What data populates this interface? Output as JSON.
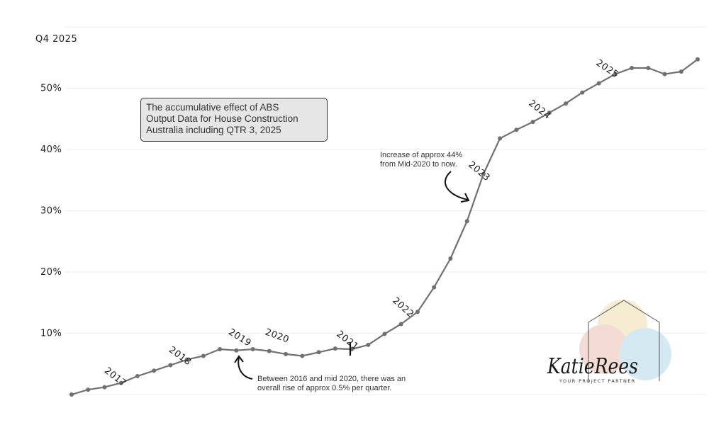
{
  "chart_data": {
    "type": "line",
    "title_lines": [
      "The accumulative effect of ABS",
      "Output Data for House Construction",
      "Australia including QTR 3, 2025"
    ],
    "top_label": "Q4 2025",
    "y_tick_labels": [
      "10%",
      "20%",
      "30%",
      "40%",
      "50%"
    ],
    "y_ticks": [
      10,
      20,
      30,
      40,
      50
    ],
    "ylim": [
      0,
      60
    ],
    "grid": "horizontal",
    "line_color": "#707070",
    "marker_color": "#707070",
    "year_labels": [
      {
        "text": "2017",
        "index": 2
      },
      {
        "text": "2018",
        "index": 6
      },
      {
        "text": "2019",
        "index": 10
      },
      {
        "text": "2020",
        "index": 13
      },
      {
        "text": "2021",
        "index": 17
      },
      {
        "text": "2022",
        "index": 21
      },
      {
        "text": "2023",
        "index": 25
      },
      {
        "text": "2024",
        "index": 29
      },
      {
        "text": "2025",
        "index": 33
      }
    ],
    "mid2020_marker_index": 17,
    "series": [
      {
        "values": [
          0,
          0.8,
          1.2,
          1.9,
          3.0,
          3.9,
          4.8,
          5.7,
          6.3,
          7.4,
          7.2,
          7.4,
          7.1,
          6.6,
          6.3,
          6.9,
          7.5,
          7.4,
          8.1,
          9.9,
          11.5,
          13.5,
          17.5,
          22.2,
          28.3,
          36.0,
          41.8,
          43.2,
          44.5,
          46.0,
          47.5,
          49.3,
          50.8,
          52.3,
          53.3,
          53.3,
          52.3,
          52.7,
          54.7
        ]
      }
    ],
    "annotations": [
      {
        "lines": [
          "Increase of approx 44%",
          "from Mid-2020 to now."
        ],
        "points_to_index": 24
      },
      {
        "lines": [
          "Between 2016 and mid 2020, there was an",
          "overall rise of approx 0.5% per quarter."
        ],
        "points_to_index": 10
      }
    ]
  },
  "logo": {
    "text": "KatieRees",
    "tagline": "YOUR PROJECT PARTNER",
    "colors": [
      "#f5ecd2",
      "#f3dcd3",
      "#d5e9f2"
    ]
  }
}
